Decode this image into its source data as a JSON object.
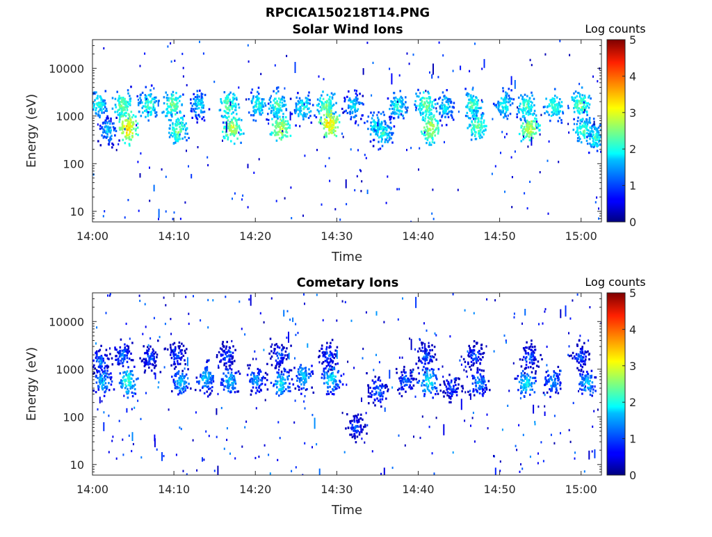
{
  "figure": {
    "title": "RPCICA150218T14.PNG"
  },
  "chart_data": [
    {
      "type": "heatmap",
      "title": "Solar Wind Ions",
      "xlabel": "Time",
      "ylabel": "Energy (eV)",
      "x_ticks": [
        "14:00",
        "14:10",
        "14:20",
        "14:30",
        "14:40",
        "14:50",
        "15:00"
      ],
      "x_tick_minutes": [
        0,
        10,
        20,
        30,
        40,
        50,
        60
      ],
      "xlim_minutes": [
        0,
        62.5
      ],
      "y_ticks": [
        "10",
        "100",
        "1000",
        "10000"
      ],
      "y_tick_values": [
        10,
        100,
        1000,
        10000
      ],
      "ylim": [
        6,
        40000
      ],
      "y_scale": "log",
      "colorbar": {
        "label": "Log counts",
        "ticks": [
          "0",
          "1",
          "2",
          "3",
          "4",
          "5"
        ],
        "range": [
          0,
          5
        ],
        "colormap": "jet"
      },
      "bursts": [
        {
          "t": 0.6,
          "e": 1700,
          "v": 2.2
        },
        {
          "t": 1.8,
          "e": 500,
          "v": 1.8
        },
        {
          "t": 3.6,
          "e": 1700,
          "v": 2.6
        },
        {
          "t": 4.2,
          "e": 550,
          "v": 3.4
        },
        {
          "t": 6.8,
          "e": 1700,
          "v": 2.4
        },
        {
          "t": 9.8,
          "e": 1700,
          "v": 2.6
        },
        {
          "t": 10.4,
          "e": 500,
          "v": 2.6
        },
        {
          "t": 13.0,
          "e": 1700,
          "v": 2.0
        },
        {
          "t": 16.6,
          "e": 1700,
          "v": 2.6
        },
        {
          "t": 17.0,
          "e": 550,
          "v": 3.0
        },
        {
          "t": 20.2,
          "e": 1700,
          "v": 2.2
        },
        {
          "t": 22.6,
          "e": 1700,
          "v": 2.4
        },
        {
          "t": 23.0,
          "e": 550,
          "v": 3.0
        },
        {
          "t": 25.8,
          "e": 1500,
          "v": 2.2
        },
        {
          "t": 28.6,
          "e": 1600,
          "v": 2.6
        },
        {
          "t": 29.0,
          "e": 700,
          "v": 3.4
        },
        {
          "t": 32.0,
          "e": 1600,
          "v": 2.0
        },
        {
          "t": 34.8,
          "e": 600,
          "v": 2.2
        },
        {
          "t": 35.6,
          "e": 450,
          "v": 2.2
        },
        {
          "t": 37.4,
          "e": 1600,
          "v": 2.2
        },
        {
          "t": 40.8,
          "e": 1700,
          "v": 2.6
        },
        {
          "t": 41.4,
          "e": 550,
          "v": 3.0
        },
        {
          "t": 43.2,
          "e": 1600,
          "v": 2.0
        },
        {
          "t": 46.6,
          "e": 1700,
          "v": 2.4
        },
        {
          "t": 47.2,
          "e": 600,
          "v": 2.6
        },
        {
          "t": 50.4,
          "e": 1700,
          "v": 2.2
        },
        {
          "t": 53.2,
          "e": 1600,
          "v": 2.4
        },
        {
          "t": 53.6,
          "e": 550,
          "v": 3.0
        },
        {
          "t": 56.6,
          "e": 1600,
          "v": 2.4
        },
        {
          "t": 59.8,
          "e": 1700,
          "v": 2.6
        },
        {
          "t": 60.2,
          "e": 500,
          "v": 2.4
        },
        {
          "t": 61.6,
          "e": 350,
          "v": 2.2
        }
      ],
      "noise_density": 1.0
    },
    {
      "type": "heatmap",
      "title": "Cometary Ions",
      "xlabel": "Time",
      "ylabel": "Energy (eV)",
      "x_ticks": [
        "14:00",
        "14:10",
        "14:20",
        "14:30",
        "14:40",
        "14:50",
        "15:00"
      ],
      "x_tick_minutes": [
        0,
        10,
        20,
        30,
        40,
        50,
        60
      ],
      "xlim_minutes": [
        0,
        62.5
      ],
      "y_ticks": [
        "10",
        "100",
        "1000",
        "10000"
      ],
      "y_tick_values": [
        10,
        100,
        1000,
        10000
      ],
      "ylim": [
        6,
        40000
      ],
      "y_scale": "log",
      "colorbar": {
        "label": "Log counts",
        "ticks": [
          "0",
          "1",
          "2",
          "3",
          "4",
          "5"
        ],
        "range": [
          0,
          5
        ],
        "colormap": "jet"
      },
      "bursts": [
        {
          "t": 0.8,
          "e": 1400,
          "v": 1.4
        },
        {
          "t": 1.2,
          "e": 550,
          "v": 1.8
        },
        {
          "t": 3.6,
          "e": 2000,
          "v": 1.4
        },
        {
          "t": 4.2,
          "e": 550,
          "v": 2.2
        },
        {
          "t": 7.0,
          "e": 1700,
          "v": 1.2
        },
        {
          "t": 10.2,
          "e": 1900,
          "v": 1.2
        },
        {
          "t": 10.8,
          "e": 550,
          "v": 1.8
        },
        {
          "t": 13.8,
          "e": 650,
          "v": 1.8
        },
        {
          "t": 16.4,
          "e": 1900,
          "v": 1.2
        },
        {
          "t": 16.8,
          "e": 550,
          "v": 1.8
        },
        {
          "t": 20.0,
          "e": 600,
          "v": 1.6
        },
        {
          "t": 22.8,
          "e": 1900,
          "v": 1.2
        },
        {
          "t": 23.0,
          "e": 500,
          "v": 2.0
        },
        {
          "t": 25.8,
          "e": 700,
          "v": 1.8
        },
        {
          "t": 28.8,
          "e": 1900,
          "v": 1.2
        },
        {
          "t": 29.2,
          "e": 650,
          "v": 2.0
        },
        {
          "t": 32.2,
          "e": 60,
          "v": 1.2
        },
        {
          "t": 35.0,
          "e": 350,
          "v": 1.4
        },
        {
          "t": 38.4,
          "e": 550,
          "v": 1.4
        },
        {
          "t": 40.8,
          "e": 1900,
          "v": 1.2
        },
        {
          "t": 41.2,
          "e": 550,
          "v": 2.0
        },
        {
          "t": 44.0,
          "e": 400,
          "v": 1.2
        },
        {
          "t": 46.8,
          "e": 1900,
          "v": 1.2
        },
        {
          "t": 47.4,
          "e": 500,
          "v": 1.6
        },
        {
          "t": 53.6,
          "e": 1800,
          "v": 1.2
        },
        {
          "t": 53.2,
          "e": 500,
          "v": 2.0
        },
        {
          "t": 56.4,
          "e": 550,
          "v": 1.6
        },
        {
          "t": 59.8,
          "e": 1800,
          "v": 1.2
        },
        {
          "t": 60.6,
          "e": 500,
          "v": 1.8
        }
      ],
      "noise_density": 1.6
    }
  ]
}
